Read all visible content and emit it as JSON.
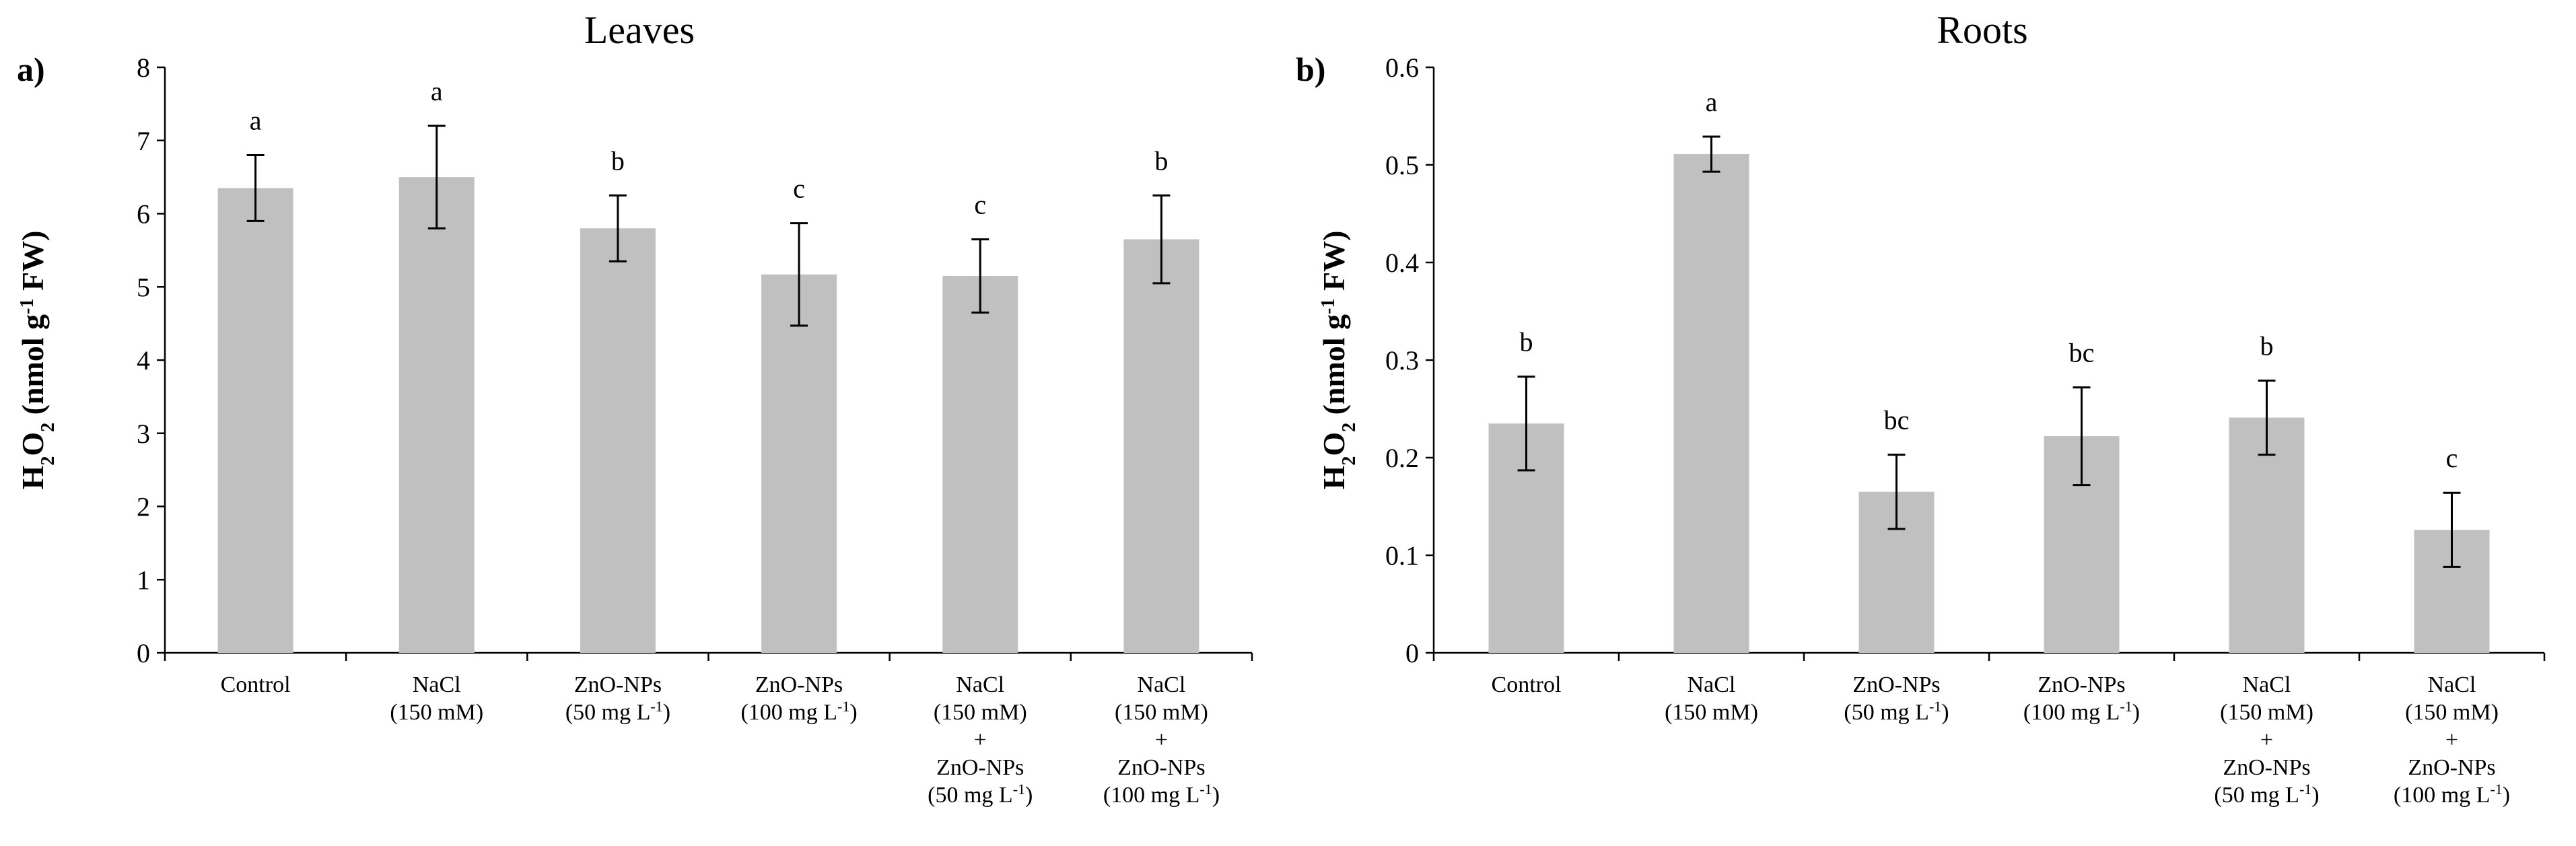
{
  "chart_data": [
    {
      "type": "bar",
      "panel_label": "a)",
      "title": "Leaves",
      "ylabel": "H2O2 (nmol g-1 FW)",
      "ylabel_parts": {
        "base": "H",
        "sub1": "2",
        "mid": "O",
        "sub2": "2",
        "rest1": " (nmol g",
        "sup": "-1",
        "rest2": " FW)"
      },
      "ylim": [
        0,
        8
      ],
      "yticks": [
        "0",
        "1",
        "2",
        "3",
        "4",
        "5",
        "6",
        "7",
        "8"
      ],
      "ytick_values": [
        0,
        1,
        2,
        3,
        4,
        5,
        6,
        7,
        8
      ],
      "categories": [
        [
          "Control"
        ],
        [
          "NaCl",
          "(150 mM)"
        ],
        [
          "ZnO-NPs",
          "(50 mg L-1)"
        ],
        [
          "ZnO-NPs",
          "(100 mg L-1)"
        ],
        [
          "NaCl",
          "(150 mM)",
          "+",
          "ZnO-NPs",
          "(50 mg L-1)"
        ],
        [
          "NaCl",
          "(150 mM)",
          "+",
          "ZnO-NPs",
          "(100 mg L-1)"
        ]
      ],
      "values": [
        6.35,
        6.5,
        5.8,
        5.17,
        5.15,
        5.65
      ],
      "errors": [
        0.45,
        0.7,
        0.45,
        0.7,
        0.5,
        0.6
      ],
      "significance": [
        "a",
        "a",
        "b",
        "c",
        "c",
        "b"
      ],
      "bar_color": "#c0c0c0"
    },
    {
      "type": "bar",
      "panel_label": "b)",
      "title": "Roots",
      "ylabel": "H2O2 (nmol g-1 FW)",
      "ylabel_parts": {
        "base": "H",
        "sub1": "2",
        "mid": "O",
        "sub2": "2",
        "rest1": " (nmol g",
        "sup": "-1",
        "rest2": " FW)"
      },
      "ylim": [
        0,
        0.6
      ],
      "yticks": [
        "0",
        "0.1",
        "0.2",
        "0.3",
        "0.4",
        "0.5",
        "0.6"
      ],
      "ytick_values": [
        0,
        0.1,
        0.2,
        0.3,
        0.4,
        0.5,
        0.6
      ],
      "categories": [
        [
          "Control"
        ],
        [
          "NaCl",
          "(150 mM)"
        ],
        [
          "ZnO-NPs",
          "(50 mg L-1)"
        ],
        [
          "ZnO-NPs",
          "(100 mg L-1)"
        ],
        [
          "NaCl",
          "(150 mM)",
          "+",
          "ZnO-NPs",
          "(50 mg L-1)"
        ],
        [
          "NaCl",
          "(150 mM)",
          "+",
          "ZnO-NPs",
          "(100 mg L-1)"
        ]
      ],
      "values": [
        0.235,
        0.511,
        0.165,
        0.222,
        0.241,
        0.126
      ],
      "errors": [
        0.048,
        0.018,
        0.038,
        0.05,
        0.038,
        0.038
      ],
      "significance": [
        "b",
        "a",
        "bc",
        "bc",
        "b",
        "c"
      ],
      "bar_color": "#c0c0c0"
    }
  ]
}
